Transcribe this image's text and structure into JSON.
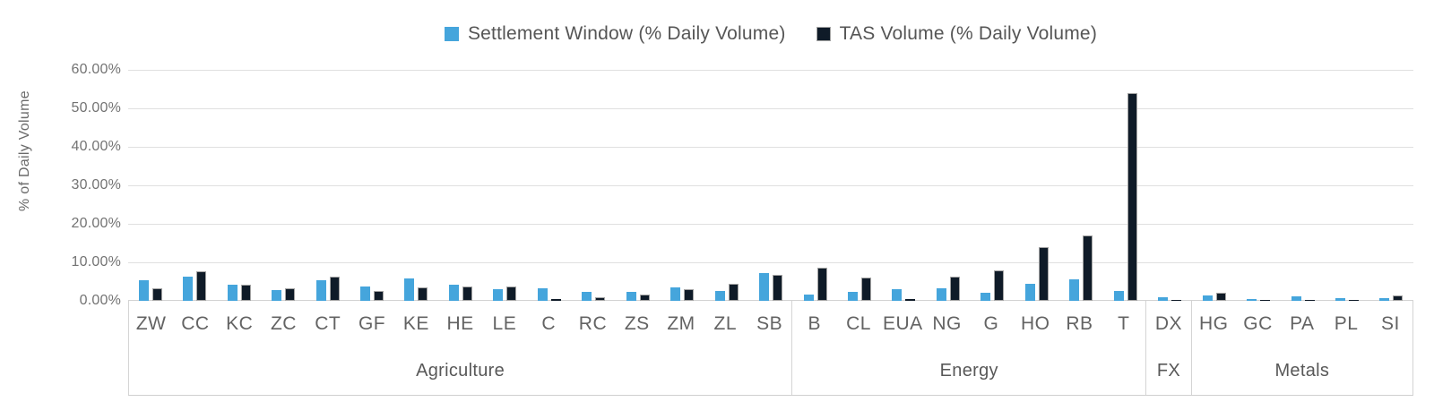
{
  "colors": {
    "settlement_blue": "#45a5dc",
    "tas_navy": "#0f1b28",
    "tas_border": "#a3a3a3",
    "gridline": "#e0e0e0",
    "axis_line": "#cfcfcf",
    "text_gray": "#636363"
  },
  "chart_data": {
    "type": "bar",
    "title": "",
    "xlabel": "",
    "ylabel": "% of Daily Volume",
    "ylim": [
      0,
      60
    ],
    "y_tick_labels": [
      "60.00%",
      "50.00%",
      "40.00%",
      "30.00%",
      "20.00%",
      "10.00%",
      "0.00%"
    ],
    "grid": true,
    "legend_position": "top-center",
    "categories": [
      "ZW",
      "CC",
      "KC",
      "ZC",
      "CT",
      "GF",
      "KE",
      "HE",
      "LE",
      "C",
      "RC",
      "ZS",
      "ZM",
      "ZL",
      "SB",
      "B",
      "CL",
      "EUA",
      "NG",
      "G",
      "HO",
      "RB",
      "T",
      "DX",
      "HG",
      "GC",
      "PA",
      "PL",
      "SI"
    ],
    "category_groups": [
      {
        "label": "Agriculture",
        "count": 15
      },
      {
        "label": "Energy",
        "count": 8
      },
      {
        "label": "FX",
        "count": 1
      },
      {
        "label": "Metals",
        "count": 5
      }
    ],
    "series": [
      {
        "name": "Settlement Window (% Daily Volume)",
        "color": "#45a5dc",
        "values": [
          5.3,
          6.4,
          4.2,
          2.7,
          5.4,
          3.8,
          5.9,
          4.3,
          3.0,
          3.2,
          2.4,
          2.4,
          3.6,
          2.6,
          7.3,
          1.6,
          2.4,
          3.0,
          3.2,
          2.0,
          4.4,
          5.5,
          2.5,
          0.9,
          1.3,
          0.4,
          1.2,
          0.6,
          0.6
        ]
      },
      {
        "name": "TAS Volume (% Daily Volume)",
        "color": "#0f1b28",
        "values": [
          3.2,
          7.7,
          4.3,
          3.2,
          6.3,
          2.6,
          3.6,
          3.8,
          3.8,
          0.4,
          0.9,
          1.7,
          3.0,
          4.4,
          6.8,
          8.6,
          6.0,
          0.4,
          6.4,
          8.0,
          14.0,
          17.0,
          54.0,
          0.05,
          2.2,
          0.3,
          0.3,
          0.3,
          1.3
        ]
      }
    ]
  }
}
